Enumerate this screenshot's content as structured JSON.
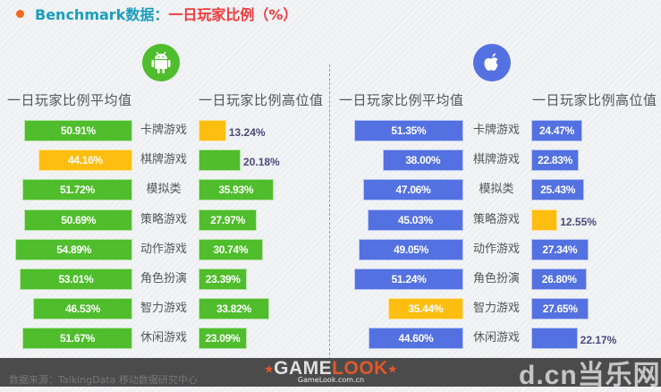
{
  "title": {
    "prefix": "Benchmark数据：",
    "main": "一日玩家比例（%）"
  },
  "colors": {
    "android": "#4fbd2c",
    "ios": "#5371e1",
    "highlight": "#fdbe10",
    "title_blue": "#1b9dbb",
    "title_red": "#f0393a",
    "bullet": "#f26a1b"
  },
  "android": {
    "icon": "android-icon",
    "avg_header": "一日玩家比例平均值",
    "high_header": "一日玩家比例高位值"
  },
  "ios": {
    "icon": "apple-icon",
    "avg_header": "一日玩家比例平均值",
    "high_header": "一日玩家比例高位值"
  },
  "categories": [
    "卡牌游戏",
    "棋牌游戏",
    "模拟类",
    "策略游戏",
    "动作游戏",
    "角色扮演",
    "智力游戏",
    "休闲游戏"
  ],
  "android_avg": [
    "50.91%",
    "44.16%",
    "51.72%",
    "50.69%",
    "54.89%",
    "53.01%",
    "46.53%",
    "51.67%"
  ],
  "android_high": [
    "13.24%",
    "20.18%",
    "35.93%",
    "27.97%",
    "30.74%",
    "23.39%",
    "33.82%",
    "23.09%"
  ],
  "ios_avg": [
    "51.35%",
    "38.00%",
    "47.06%",
    "45.03%",
    "49.05%",
    "51.24%",
    "35.44%",
    "44.60%"
  ],
  "ios_high": [
    "24.47%",
    "22.83%",
    "25.43%",
    "12.55%",
    "27.34%",
    "26.80%",
    "27.65%",
    "22.17%"
  ],
  "footer": {
    "source": "数据来源：TalkingData 移动数据研究中心",
    "logo_g": "GAME",
    "logo_o": "LOOK",
    "logo_sub": "GameLook.com.cn",
    "watermark": "d.cn当乐网"
  },
  "chart_data": [
    {
      "type": "bar",
      "title": "Android - 一日玩家比例（%）",
      "categories": [
        "卡牌游戏",
        "棋牌游戏",
        "模拟类",
        "策略游戏",
        "动作游戏",
        "角色扮演",
        "智力游戏",
        "休闲游戏"
      ],
      "series": [
        {
          "name": "一日玩家比例平均值",
          "values": [
            50.91,
            44.16,
            51.72,
            50.69,
            54.89,
            53.01,
            46.53,
            51.67
          ],
          "highlight_index": [
            1
          ]
        },
        {
          "name": "一日玩家比例高位值",
          "values": [
            13.24,
            20.18,
            35.93,
            27.97,
            30.74,
            23.39,
            33.82,
            23.09
          ],
          "highlight_index": [
            0
          ]
        }
      ],
      "orientation": "horizontal",
      "ylabel": "%"
    },
    {
      "type": "bar",
      "title": "iOS - 一日玩家比例（%）",
      "categories": [
        "卡牌游戏",
        "棋牌游戏",
        "模拟类",
        "策略游戏",
        "动作游戏",
        "角色扮演",
        "智力游戏",
        "休闲游戏"
      ],
      "series": [
        {
          "name": "一日玩家比例平均值",
          "values": [
            51.35,
            38.0,
            47.06,
            45.03,
            49.05,
            51.24,
            35.44,
            44.6
          ],
          "highlight_index": [
            6
          ]
        },
        {
          "name": "一日玩家比例高位值",
          "values": [
            24.47,
            22.83,
            25.43,
            12.55,
            27.34,
            26.8,
            27.65,
            22.17
          ],
          "highlight_index": [
            3
          ]
        }
      ],
      "orientation": "horizontal",
      "ylabel": "%"
    }
  ]
}
